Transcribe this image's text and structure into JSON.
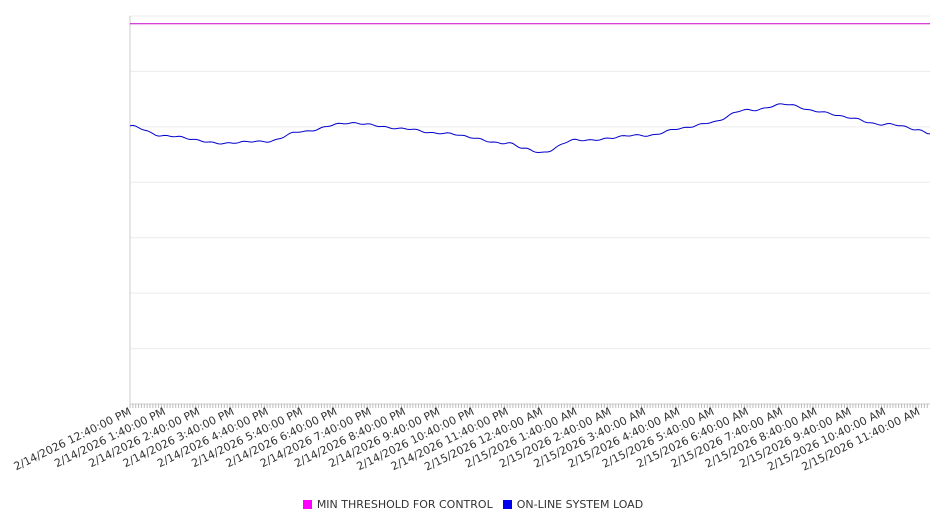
{
  "chart_data": {
    "type": "line",
    "title": "",
    "xlabel": "",
    "ylabel": "",
    "ylim": [
      0,
      7
    ],
    "grid": true,
    "legend_position": "bottom-center",
    "x_ticks": [
      "2/14/2026 12:40:00 PM",
      "2/14/2026 1:40:00 PM",
      "2/14/2026 2:40:00 PM",
      "2/14/2026 3:40:00 PM",
      "2/14/2026 4:40:00 PM",
      "2/14/2026 5:40:00 PM",
      "2/14/2026 6:40:00 PM",
      "2/14/2026 7:40:00 PM",
      "2/14/2026 8:40:00 PM",
      "2/14/2026 9:40:00 PM",
      "2/14/2026 10:40:00 PM",
      "2/14/2026 11:40:00 PM",
      "2/15/2026 12:40:00 AM",
      "2/15/2026 1:40:00 AM",
      "2/15/2026 2:40:00 AM",
      "2/15/2026 3:40:00 AM",
      "2/15/2026 4:40:00 AM",
      "2/15/2026 5:40:00 AM",
      "2/15/2026 6:40:00 AM",
      "2/15/2026 7:40:00 AM",
      "2/15/2026 8:40:00 AM",
      "2/15/2026 9:40:00 AM",
      "2/15/2026 10:40:00 AM",
      "2/15/2026 11:40:00 AM"
    ],
    "series": [
      {
        "name": "MIN THRESHOLD FOR CONTROL",
        "color": "#cc00cc",
        "x": [
          "2/14/2026 12:40:00 PM",
          "2/15/2026 12:00:00 PM"
        ],
        "values": [
          6.86,
          6.86
        ]
      },
      {
        "name": "ON-LINE SYSTEM LOAD",
        "color": "#0000cc",
        "x": [
          "2/14/2026 12:40:00 PM",
          "2/14/2026 1:40:00 PM",
          "2/14/2026 2:40:00 PM",
          "2/14/2026 3:40:00 PM",
          "2/14/2026 4:40:00 PM",
          "2/14/2026 5:40:00 PM",
          "2/14/2026 6:40:00 PM",
          "2/14/2026 7:40:00 PM",
          "2/14/2026 8:40:00 PM",
          "2/14/2026 9:40:00 PM",
          "2/14/2026 10:40:00 PM",
          "2/14/2026 11:40:00 PM",
          "2/15/2026 12:10:00 AM",
          "2/15/2026 12:40:00 AM",
          "2/15/2026 1:40:00 AM",
          "2/15/2026 2:40:00 AM",
          "2/15/2026 3:40:00 AM",
          "2/15/2026 4:40:00 AM",
          "2/15/2026 5:40:00 AM",
          "2/15/2026 6:40:00 AM",
          "2/15/2026 7:40:00 AM",
          "2/15/2026 8:40:00 AM",
          "2/15/2026 9:40:00 AM",
          "2/15/2026 10:40:00 AM",
          "2/15/2026 11:40:00 AM",
          "2/15/2026 12:00:00 PM"
        ],
        "values": [
          5.0,
          4.85,
          4.75,
          4.7,
          4.75,
          4.9,
          5.05,
          5.05,
          4.95,
          4.9,
          4.8,
          4.7,
          4.6,
          4.55,
          4.75,
          4.8,
          4.85,
          4.95,
          5.1,
          5.3,
          5.4,
          5.3,
          5.15,
          5.05,
          4.95,
          4.9
        ]
      }
    ]
  }
}
